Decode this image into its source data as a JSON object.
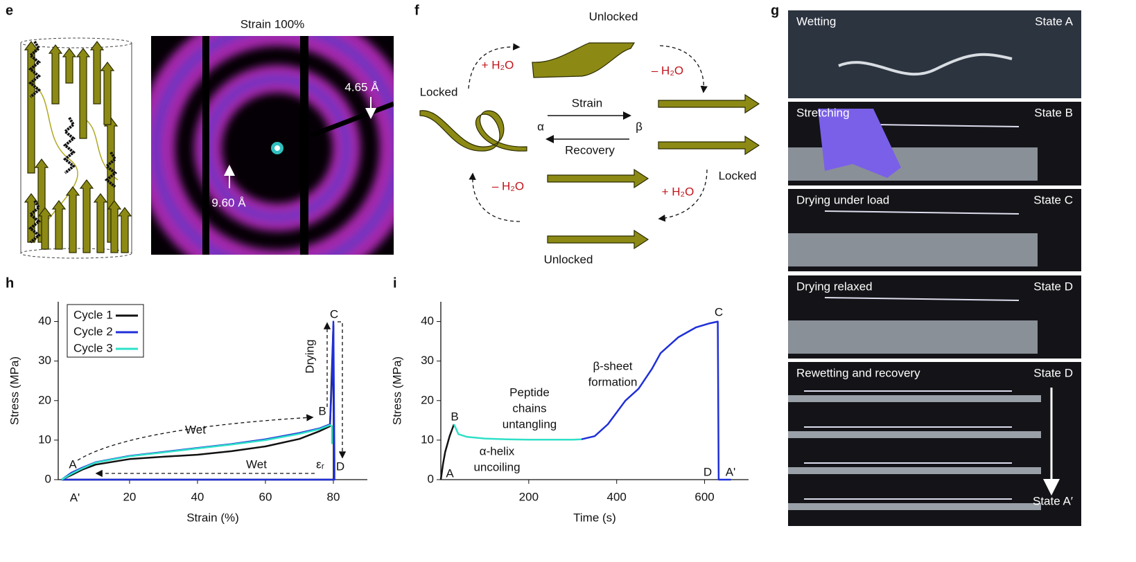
{
  "panels": {
    "e": {
      "label": "e",
      "title": "Strain 100%",
      "annotations": [
        "4.65 Å",
        "9.60 Å"
      ]
    },
    "f": {
      "label": "f",
      "texts": [
        "Unlocked",
        "+ H₂O",
        "– H₂O",
        "Locked",
        "Strain",
        "α",
        "β",
        "Recovery",
        "Locked",
        "– H₂O",
        "+ H₂O",
        "Unlocked"
      ]
    },
    "g": {
      "label": "g",
      "photos": [
        {
          "caption": "Wetting",
          "state": "State A"
        },
        {
          "caption": "Stretching",
          "state": "State B"
        },
        {
          "caption": "Drying under load",
          "state": "State C"
        },
        {
          "caption": "Drying relaxed",
          "state": "State D"
        },
        {
          "caption": "Rewetting and recovery",
          "state": "State D",
          "end_state": "State A′"
        }
      ]
    }
  },
  "chart_data": [
    {
      "type": "line",
      "panel_label": "h",
      "xlabel": "Strain (%)",
      "ylabel": "Stress (MPa)",
      "xlim": [
        -1,
        90
      ],
      "ylim": [
        0,
        45
      ],
      "xticks": [
        20,
        40,
        60,
        80
      ],
      "yticks": [
        0,
        10,
        20,
        30,
        40
      ],
      "legend": "upper left",
      "series": [
        {
          "name": "Cycle 1",
          "color": "#111111",
          "x": [
            0,
            3,
            6,
            10,
            20,
            30,
            40,
            50,
            60,
            70,
            76,
            79,
            79.5,
            80,
            80.1,
            80.1,
            60,
            40,
            20,
            5,
            0
          ],
          "values": [
            0,
            1.2,
            2.5,
            3.8,
            5.2,
            5.8,
            6.3,
            7.2,
            8.4,
            10.3,
            12.3,
            13.5,
            26,
            39,
            8,
            0,
            0,
            0,
            0,
            0,
            0
          ]
        },
        {
          "name": "Cycle 2",
          "color": "#1f2fd8",
          "x": [
            0,
            3,
            6,
            10,
            20,
            30,
            40,
            50,
            60,
            70,
            76,
            79,
            79.6,
            80,
            80.3,
            80.3,
            60,
            40,
            20,
            5,
            0
          ],
          "values": [
            0,
            1.8,
            3,
            4.4,
            6,
            7,
            8,
            9,
            10.2,
            11.8,
            13,
            14,
            25,
            40,
            5,
            0,
            0,
            0,
            0,
            0,
            0
          ]
        },
        {
          "name": "Cycle 3",
          "color": "#2ee0c8",
          "x": [
            0,
            3,
            6,
            10,
            20,
            30,
            40,
            50,
            60,
            70,
            76,
            79,
            79.6,
            79.6
          ],
          "values": [
            0,
            1.5,
            2.8,
            4.3,
            5.9,
            6.9,
            7.9,
            8.9,
            10,
            11.6,
            12.8,
            13.8,
            13.5,
            9
          ]
        }
      ],
      "annotations": [
        "A",
        "A'",
        "B",
        "C",
        "D",
        "Wet",
        "Wet",
        "Drying",
        "εᵣ"
      ]
    },
    {
      "type": "line",
      "panel_label": "i",
      "xlabel": "Time (s)",
      "ylabel": "Stress (MPa)",
      "xlim": [
        0,
        700
      ],
      "ylim": [
        0,
        45
      ],
      "xticks": [
        200,
        400,
        600
      ],
      "yticks": [
        0,
        10,
        20,
        30,
        40
      ],
      "series": [
        {
          "color": "#111111",
          "x": [
            0,
            5,
            10,
            20,
            30
          ],
          "values": [
            0,
            4,
            7,
            11,
            14
          ]
        },
        {
          "color": "#2ee0c8",
          "x": [
            30,
            40,
            60,
            100,
            150,
            200,
            250,
            300,
            320
          ],
          "values": [
            14,
            11.5,
            10.8,
            10.4,
            10.2,
            10.1,
            10.1,
            10.1,
            10.2
          ]
        },
        {
          "color": "#1f2fd8",
          "x": [
            320,
            350,
            380,
            400,
            420,
            450,
            480,
            500,
            540,
            580,
            610,
            630,
            632,
            640,
            660
          ],
          "values": [
            10.2,
            11,
            14,
            17,
            20,
            23,
            28,
            32,
            36,
            38.5,
            39.5,
            40,
            0,
            0,
            0
          ]
        }
      ],
      "annotations": [
        "A",
        "B",
        "C",
        "D",
        "A'",
        "Peptide",
        "chains",
        "untangling",
        "α-helix",
        "uncoiling",
        "β-sheet",
        "formation"
      ]
    }
  ]
}
